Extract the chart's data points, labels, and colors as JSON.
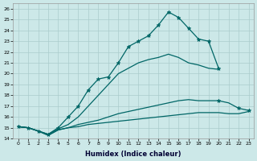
{
  "xlabel": "Humidex (Indice chaleur)",
  "bg_color": "#cce8e8",
  "grid_color": "#aacccc",
  "line_color": "#006666",
  "xlim": [
    -0.5,
    23.5
  ],
  "ylim": [
    14,
    26.5
  ],
  "xticks": [
    0,
    1,
    2,
    3,
    4,
    5,
    6,
    7,
    8,
    9,
    10,
    11,
    12,
    13,
    14,
    15,
    16,
    17,
    18,
    19,
    20,
    21,
    22,
    23
  ],
  "yticks": [
    14,
    15,
    16,
    17,
    18,
    19,
    20,
    21,
    22,
    23,
    24,
    25,
    26
  ],
  "line1_x": [
    0,
    1,
    2,
    3,
    4,
    5,
    6,
    7,
    8,
    9,
    10,
    11,
    12,
    13,
    14,
    15,
    16,
    17,
    18,
    19,
    20
  ],
  "line1_y": [
    15.1,
    15.0,
    14.7,
    14.4,
    15.0,
    16.0,
    17.0,
    18.5,
    19.5,
    19.7,
    21.0,
    22.5,
    23.0,
    23.5,
    24.5,
    25.7,
    25.2,
    24.2,
    23.2,
    23.0,
    20.5
  ],
  "line2_x": [
    0,
    1,
    2,
    3,
    4,
    5,
    6,
    7,
    8,
    9,
    10,
    11,
    12,
    13,
    14,
    15,
    16,
    17,
    18,
    19,
    20
  ],
  "line2_y": [
    15.1,
    15.0,
    14.7,
    14.4,
    14.9,
    15.3,
    16.0,
    17.0,
    18.0,
    19.0,
    20.0,
    20.5,
    21.0,
    21.3,
    21.5,
    21.8,
    21.5,
    21.0,
    20.8,
    20.5,
    20.4
  ],
  "line3_x": [
    0,
    1,
    2,
    3,
    4,
    5,
    6,
    7,
    8,
    9,
    10,
    11,
    12,
    13,
    14,
    15,
    16,
    17,
    18,
    19,
    20,
    21,
    22,
    23
  ],
  "line3_y": [
    15.1,
    15.0,
    14.7,
    14.3,
    14.8,
    15.0,
    15.3,
    15.5,
    15.7,
    16.0,
    16.3,
    16.5,
    16.7,
    16.9,
    17.1,
    17.3,
    17.5,
    17.6,
    17.5,
    17.5,
    17.5,
    17.3,
    16.8,
    16.6
  ],
  "line4_x": [
    0,
    1,
    2,
    3,
    4,
    5,
    6,
    7,
    8,
    9,
    10,
    11,
    12,
    13,
    14,
    15,
    16,
    17,
    18,
    19,
    20,
    21,
    22,
    23
  ],
  "line4_y": [
    15.1,
    15.0,
    14.7,
    14.3,
    14.8,
    15.0,
    15.1,
    15.3,
    15.4,
    15.5,
    15.6,
    15.7,
    15.8,
    15.9,
    16.0,
    16.1,
    16.2,
    16.3,
    16.4,
    16.4,
    16.4,
    16.3,
    16.3,
    16.5
  ]
}
